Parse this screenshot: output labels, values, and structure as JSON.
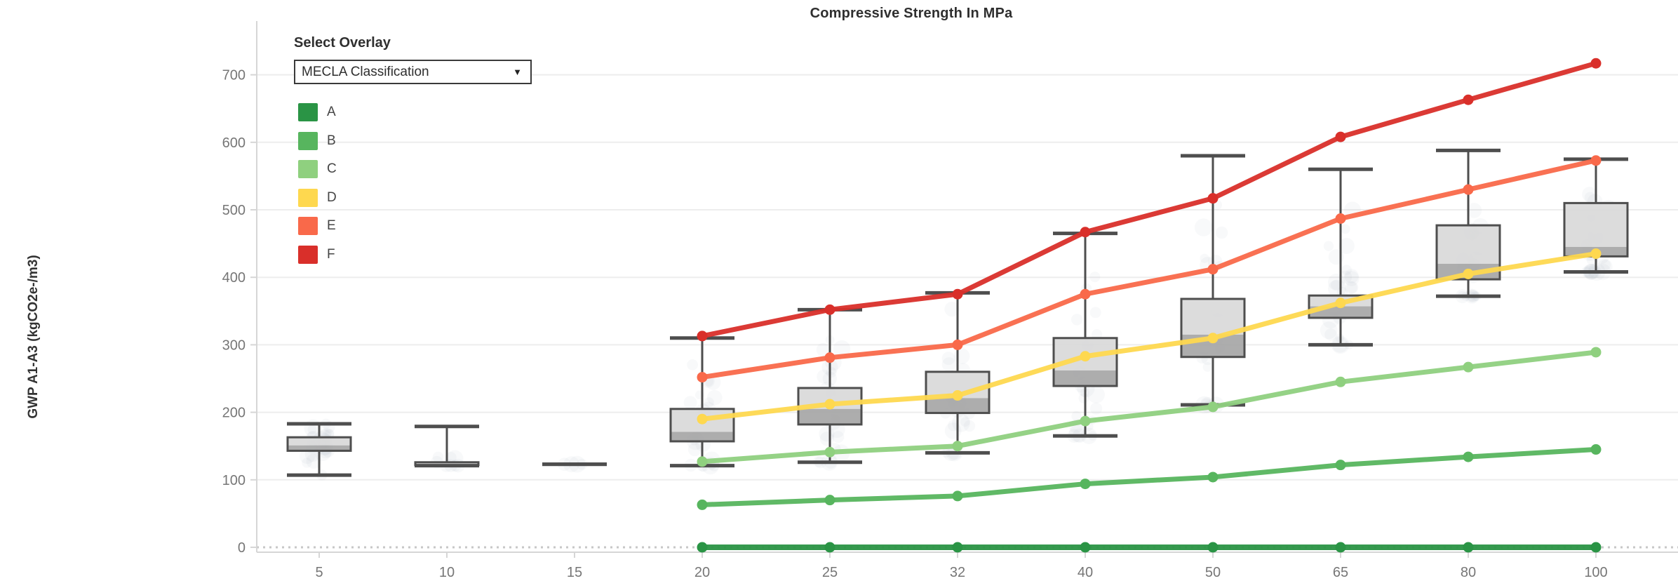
{
  "header": {
    "title": "Compressive Strength In MPa"
  },
  "overlay": {
    "label": "Select Overlay",
    "selected": "MECLA Classification",
    "chevron": "▼"
  },
  "legend": {
    "items": [
      {
        "label": "A",
        "color": "#2a9445"
      },
      {
        "label": "B",
        "color": "#57b55e"
      },
      {
        "label": "C",
        "color": "#8fd07f"
      },
      {
        "label": "D",
        "color": "#fed84f"
      },
      {
        "label": "E",
        "color": "#f9694a"
      },
      {
        "label": "F",
        "color": "#d92f2a"
      }
    ]
  },
  "chart_data": {
    "type": "box+line",
    "title": "Compressive Strength In MPa",
    "xlabel": "Compressive Strength In MPa",
    "ylabel": "GWP A1-A3 (kgCO2e-/m3)",
    "categories": [
      5,
      10,
      15,
      20,
      25,
      32,
      40,
      50,
      65,
      80,
      100
    ],
    "y_ticks": [
      0,
      100,
      200,
      300,
      400,
      500,
      600,
      700
    ],
    "ylim": [
      -25,
      740
    ],
    "grid": "horizontal",
    "zero_reference_line": 0,
    "legend_position": "top-left",
    "boxes": [
      {
        "x": 5,
        "min": 107,
        "q1": 143,
        "median": 151,
        "q3": 163,
        "max": 183
      },
      {
        "x": 10,
        "min": 121,
        "q1": 122,
        "median": 123,
        "q3": 126,
        "max": 179
      },
      {
        "x": 15,
        "min": 123,
        "q1": 123,
        "median": 123,
        "q3": 123,
        "max": 123
      },
      {
        "x": 20,
        "min": 121,
        "q1": 157,
        "median": 171,
        "q3": 205,
        "max": 310
      },
      {
        "x": 25,
        "min": 126,
        "q1": 182,
        "median": 205,
        "q3": 236,
        "max": 352
      },
      {
        "x": 32,
        "min": 140,
        "q1": 199,
        "median": 221,
        "q3": 260,
        "max": 377
      },
      {
        "x": 40,
        "min": 165,
        "q1": 239,
        "median": 262,
        "q3": 310,
        "max": 465
      },
      {
        "x": 50,
        "min": 211,
        "q1": 282,
        "median": 315,
        "q3": 368,
        "max": 580
      },
      {
        "x": 65,
        "min": 300,
        "q1": 340,
        "median": 357,
        "q3": 373,
        "max": 560
      },
      {
        "x": 80,
        "min": 372,
        "q1": 397,
        "median": 420,
        "q3": 477,
        "max": 588
      },
      {
        "x": 100,
        "min": 408,
        "q1": 431,
        "median": 445,
        "q3": 510,
        "max": 575
      }
    ],
    "series": [
      {
        "name": "A",
        "color": "#2a9445",
        "x": [
          20,
          25,
          32,
          40,
          50,
          65,
          80,
          100
        ],
        "values": [
          0,
          0,
          0,
          0,
          0,
          0,
          0,
          0
        ]
      },
      {
        "name": "B",
        "color": "#57b55e",
        "x": [
          20,
          25,
          32,
          40,
          50,
          65,
          80,
          100
        ],
        "values": [
          63,
          70,
          76,
          94,
          104,
          122,
          134,
          145
        ]
      },
      {
        "name": "C",
        "color": "#8fd07f",
        "x": [
          20,
          25,
          32,
          40,
          50,
          65,
          80,
          100
        ],
        "values": [
          127,
          141,
          150,
          187,
          208,
          245,
          267,
          289
        ]
      },
      {
        "name": "D",
        "color": "#fed84f",
        "x": [
          20,
          25,
          32,
          40,
          50,
          65,
          80,
          100
        ],
        "values": [
          190,
          212,
          225,
          283,
          310,
          362,
          405,
          435
        ]
      },
      {
        "name": "E",
        "color": "#f9694a",
        "x": [
          20,
          25,
          32,
          40,
          50,
          65,
          80,
          100
        ],
        "values": [
          252,
          281,
          300,
          375,
          412,
          487,
          530,
          573
        ]
      },
      {
        "name": "F",
        "color": "#d92f2a",
        "x": [
          20,
          25,
          32,
          40,
          50,
          65,
          80,
          100
        ],
        "values": [
          313,
          352,
          375,
          467,
          517,
          608,
          663,
          717
        ]
      }
    ]
  }
}
